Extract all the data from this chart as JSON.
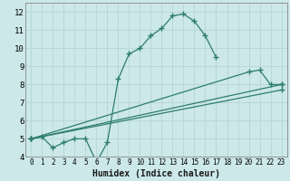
{
  "xlabel": "Humidex (Indice chaleur)",
  "bg_color": "#cce8e8",
  "grid_color": "#b8d8d8",
  "line_color": "#2d7d6e",
  "xlim": [
    -0.5,
    23.5
  ],
  "ylim": [
    4,
    12.5
  ],
  "xticks": [
    0,
    1,
    2,
    3,
    4,
    5,
    6,
    7,
    8,
    9,
    10,
    11,
    12,
    13,
    14,
    15,
    16,
    17,
    18,
    19,
    20,
    21,
    22,
    23
  ],
  "yticks": [
    4,
    5,
    6,
    7,
    8,
    9,
    10,
    11,
    12
  ],
  "lines": [
    {
      "x": [
        0,
        1,
        2,
        3,
        4,
        5,
        6,
        7,
        8,
        9,
        10,
        11,
        12,
        13,
        14,
        15,
        16,
        17
      ],
      "y": [
        5.0,
        5.1,
        4.5,
        4.8,
        5.0,
        5.0,
        3.7,
        4.8,
        8.3,
        9.7,
        10.0,
        10.7,
        11.1,
        11.8,
        11.9,
        11.5,
        10.7,
        9.5
      ]
    },
    {
      "x": [
        0,
        20,
        21,
        22,
        23
      ],
      "y": [
        5.0,
        8.7,
        8.8,
        8.0,
        8.0
      ]
    },
    {
      "x": [
        0,
        23
      ],
      "y": [
        5.0,
        8.0
      ]
    },
    {
      "x": [
        0,
        23
      ],
      "y": [
        5.0,
        7.7
      ]
    }
  ]
}
